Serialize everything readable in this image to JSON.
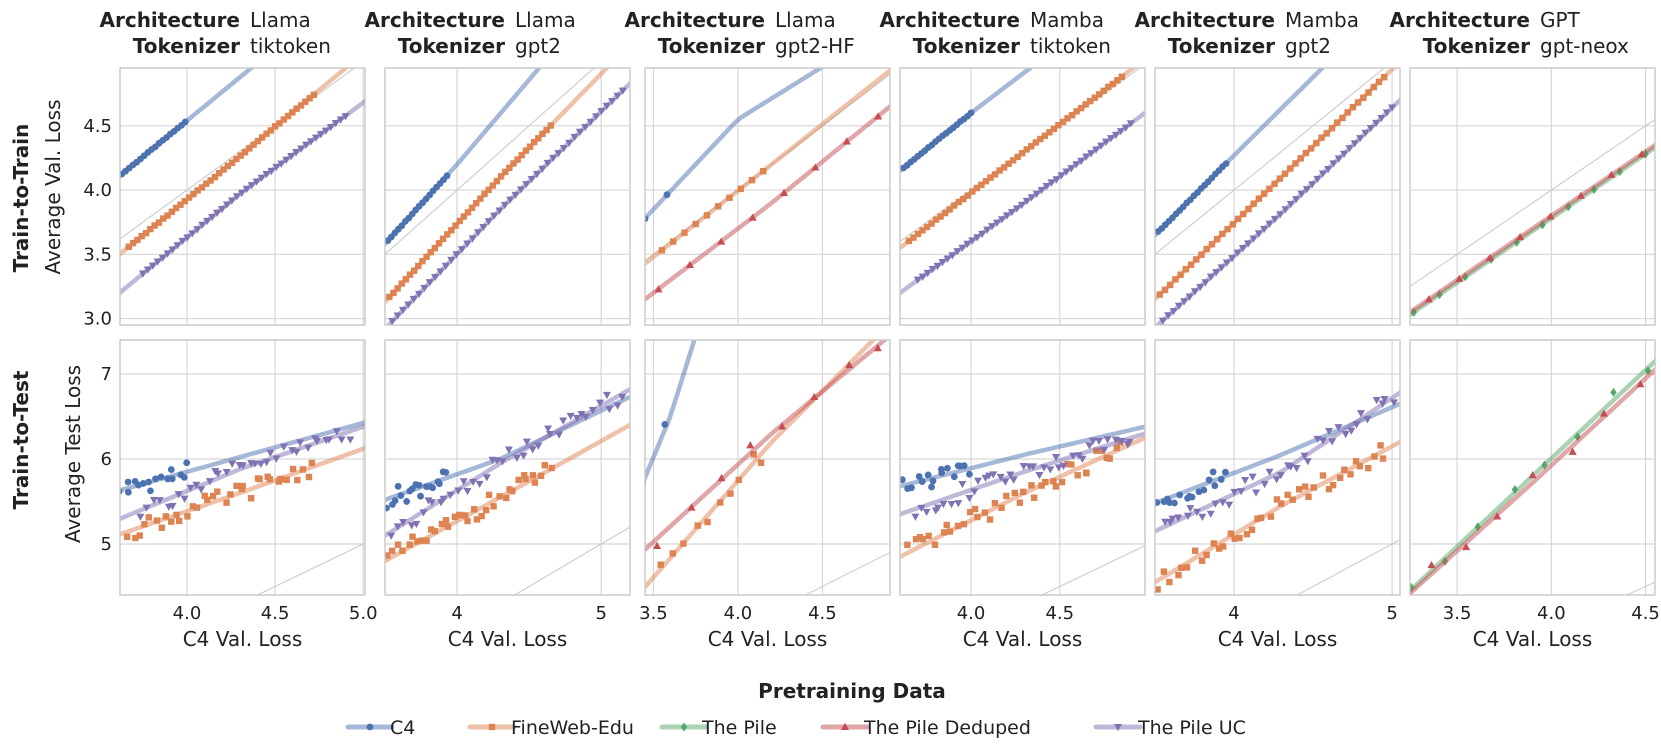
{
  "figure": {
    "legend_title": "Pretraining Data",
    "x_label": "C4 Val. Loss",
    "row_labels": [
      "Train-to-Train",
      "Train-to-Test"
    ],
    "y_labels": [
      "Average Val. Loss",
      "Average Test Loss"
    ],
    "arch_key": "Architecture",
    "tok_key": "Tokenizer"
  },
  "series_styles": {
    "C4": {
      "color": "#4c72b0",
      "marker": "circle"
    },
    "FineWeb-Edu": {
      "color": "#dd8452",
      "marker": "square"
    },
    "The Pile": {
      "color": "#55a868",
      "marker": "diamond"
    },
    "The Pile Deduped": {
      "color": "#c44e52",
      "marker": "triangle-up"
    },
    "The Pile UC": {
      "color": "#8172b3",
      "marker": "triangle-down"
    }
  },
  "legend": [
    "C4",
    "FineWeb-Edu",
    "The Pile",
    "The Pile Deduped",
    "The Pile UC"
  ],
  "chart_data": [
    {
      "type": "scatter",
      "arch": "Llama",
      "tok": "tiktoken",
      "xlim": [
        3.62,
        5.01
      ],
      "xticks": [
        4.0,
        4.5,
        5.0
      ],
      "xticklabels": [
        "4.0",
        "4.5",
        "5.0"
      ],
      "row_ylim": [
        [
          2.95,
          4.95
        ],
        [
          4.4,
          7.4
        ]
      ],
      "row_yticks": [
        [
          3.0,
          3.5,
          4.0,
          4.5
        ],
        [
          5,
          6,
          7
        ]
      ],
      "row_yticklabels": [
        [
          "3.0",
          "3.5",
          "4.0",
          "4.5"
        ],
        [
          "5",
          "6",
          "7"
        ]
      ],
      "train_to_train": [
        {
          "name": "C4",
          "x0": 3.63,
          "x1": 3.99,
          "n": 18,
          "fit": [
            [
              3.6,
              4.09
            ],
            [
              4.0,
              4.54
            ],
            [
              4.4,
              4.99
            ]
          ]
        },
        {
          "name": "FineWeb-Edu",
          "x0": 3.67,
          "x1": 4.72,
          "n": 44,
          "fit": [
            [
              3.6,
              3.48
            ],
            [
              4.2,
              4.15
            ],
            [
              4.9,
              4.95
            ]
          ]
        },
        {
          "name": "The Pile UC",
          "x0": 3.75,
          "x1": 4.9,
          "n": 42,
          "fit": [
            [
              3.6,
              3.18
            ],
            [
              4.3,
              3.97
            ],
            [
              5.0,
              4.68
            ]
          ]
        }
      ],
      "train_to_test": [
        {
          "name": "C4",
          "x0": 3.63,
          "x1": 4.0,
          "n": 16,
          "fit": [
            [
              3.6,
              5.62
            ],
            [
              4.0,
              5.85
            ]
          ]
        },
        {
          "name": "FineWeb-Edu",
          "x0": 3.67,
          "x1": 4.72,
          "n": 36,
          "fit": [
            [
              3.6,
              5.1
            ],
            [
              4.3,
              5.6
            ],
            [
              5.0,
              6.12
            ]
          ]
        },
        {
          "name": "The Pile UC",
          "x0": 3.75,
          "x1": 4.92,
          "n": 36,
          "fit": [
            [
              3.6,
              5.28
            ],
            [
              4.3,
              5.88
            ],
            [
              5.0,
              6.38
            ]
          ]
        }
      ]
    },
    {
      "type": "scatter",
      "arch": "Llama",
      "tok": "gpt2",
      "xlim": [
        3.5,
        5.2
      ],
      "xticks": [
        4.0,
        5.0
      ],
      "xticklabels": [
        "4",
        "5"
      ],
      "row_ylim": [
        [
          2.95,
          4.95
        ],
        [
          4.4,
          7.4
        ]
      ],
      "row_yticks": [
        [
          3.0,
          3.5,
          4.0,
          4.5
        ],
        [
          5,
          6,
          7
        ]
      ],
      "row_yticklabels": [
        [
          "3.0",
          "3.5",
          "4.0",
          "4.5"
        ],
        [
          "5",
          "6",
          "7"
        ]
      ],
      "train_to_train": [
        {
          "name": "C4",
          "x0": 3.52,
          "x1": 3.93,
          "n": 18,
          "fit": [
            [
              3.5,
              3.58
            ],
            [
              4.0,
              4.2
            ],
            [
              4.6,
              4.99
            ]
          ]
        },
        {
          "name": "FineWeb-Edu",
          "x0": 3.53,
          "x1": 4.65,
          "n": 40,
          "fit": [
            [
              3.5,
              3.13
            ],
            [
              4.3,
              4.1
            ],
            [
              5.1,
              5.02
            ]
          ]
        },
        {
          "name": "The Pile UC",
          "x0": 3.55,
          "x1": 5.15,
          "n": 44,
          "fit": [
            [
              3.5,
              2.92
            ],
            [
              4.3,
              3.85
            ],
            [
              5.2,
              4.83
            ]
          ]
        }
      ],
      "train_to_test": [
        {
          "name": "C4",
          "x0": 3.52,
          "x1": 3.93,
          "n": 18,
          "fit": [
            [
              3.5,
              5.52
            ],
            [
              4.3,
              6.0
            ],
            [
              5.1,
              6.65
            ]
          ]
        },
        {
          "name": "FineWeb-Edu",
          "x0": 3.53,
          "x1": 4.65,
          "n": 36,
          "fit": [
            [
              3.5,
              4.8
            ],
            [
              4.3,
              5.55
            ],
            [
              5.2,
              6.4
            ]
          ]
        },
        {
          "name": "The Pile UC",
          "x0": 3.55,
          "x1": 5.15,
          "n": 40,
          "fit": [
            [
              3.5,
              5.1
            ],
            [
              4.3,
              5.95
            ],
            [
              5.2,
              6.82
            ]
          ]
        }
      ]
    },
    {
      "type": "scatter",
      "arch": "Llama",
      "tok": "gpt2-HF",
      "xlim": [
        3.45,
        4.9
      ],
      "xticks": [
        3.5,
        4.0,
        4.5
      ],
      "xticklabels": [
        "3.5",
        "4.0",
        "4.5"
      ],
      "row_ylim": [
        [
          2.95,
          4.95
        ],
        [
          4.4,
          7.4
        ]
      ],
      "row_yticks": [
        [
          3.0,
          3.5,
          4.0,
          4.5
        ],
        [
          5,
          6,
          7
        ]
      ],
      "row_yticklabels": [
        [
          "3.0",
          "3.5",
          "4.0",
          "4.5"
        ],
        [
          "5",
          "6",
          "7"
        ]
      ],
      "train_to_train": [
        {
          "name": "C4",
          "x0": 3.45,
          "x1": 3.58,
          "n": 2,
          "fit": [
            [
              3.45,
              3.78
            ],
            [
              4.0,
              4.55
            ],
            [
              4.55,
              5.0
            ]
          ]
        },
        {
          "name": "FineWeb-Edu",
          "x0": 3.55,
          "x1": 4.15,
          "n": 10,
          "fit": [
            [
              3.5,
              3.48
            ],
            [
              4.2,
              4.2
            ],
            [
              4.9,
              4.93
            ]
          ]
        },
        {
          "name": "The Pile Deduped",
          "x0": 3.53,
          "x1": 4.83,
          "n": 8,
          "fit": [
            [
              3.5,
              3.2
            ],
            [
              4.2,
              3.9
            ],
            [
              4.9,
              4.65
            ]
          ]
        }
      ],
      "train_to_test": [
        {
          "name": "C4",
          "x0": 3.45,
          "x1": 3.58,
          "n": 2,
          "fit": [
            [
              3.45,
              5.78
            ],
            [
              3.6,
              6.5
            ],
            [
              3.75,
              7.45
            ]
          ]
        },
        {
          "name": "FineWeb-Edu",
          "x0": 3.55,
          "x1": 4.15,
          "n": 10,
          "fit": [
            [
              3.55,
              4.72
            ],
            [
              4.2,
              6.2
            ],
            [
              4.85,
              7.5
            ]
          ]
        },
        {
          "name": "The Pile Deduped",
          "x0": 3.53,
          "x1": 4.83,
          "n": 8,
          "fit": [
            [
              3.53,
              5.08
            ],
            [
              4.2,
              6.3
            ],
            [
              4.88,
              7.42
            ]
          ]
        }
      ]
    },
    {
      "type": "scatter",
      "arch": "Mamba",
      "tok": "tiktoken",
      "xlim": [
        3.6,
        4.98
      ],
      "xticks": [
        4.0,
        4.5
      ],
      "xticklabels": [
        "4.0",
        "4.5"
      ],
      "row_ylim": [
        [
          2.95,
          4.95
        ],
        [
          4.4,
          7.4
        ]
      ],
      "row_yticks": [
        [
          3.0,
          3.5,
          4.0,
          4.5
        ],
        [
          5,
          6,
          7
        ]
      ],
      "row_yticklabels": [
        [
          "3.0",
          "3.5",
          "4.0",
          "4.5"
        ],
        [
          "5",
          "6",
          "7"
        ]
      ],
      "train_to_train": [
        {
          "name": "C4",
          "x0": 3.62,
          "x1": 4.0,
          "n": 20,
          "fit": [
            [
              3.6,
              4.15
            ],
            [
              4.0,
              4.6
            ],
            [
              4.4,
              5.02
            ]
          ]
        },
        {
          "name": "FineWeb-Edu",
          "x0": 3.65,
          "x1": 4.85,
          "n": 48,
          "fit": [
            [
              3.6,
              3.55
            ],
            [
              4.3,
              4.3
            ],
            [
              4.98,
              5.02
            ]
          ]
        },
        {
          "name": "The Pile UC",
          "x0": 3.7,
          "x1": 4.9,
          "n": 44,
          "fit": [
            [
              3.6,
              3.2
            ],
            [
              4.3,
              3.9
            ],
            [
              4.98,
              4.6
            ]
          ]
        }
      ],
      "train_to_test": [
        {
          "name": "C4",
          "x0": 3.62,
          "x1": 4.0,
          "n": 16,
          "fit": [
            [
              3.6,
              5.68
            ],
            [
              4.3,
              6.05
            ],
            [
              4.98,
              6.38
            ]
          ]
        },
        {
          "name": "FineWeb-Edu",
          "x0": 3.65,
          "x1": 4.85,
          "n": 40,
          "fit": [
            [
              3.6,
              4.85
            ],
            [
              4.3,
              5.6
            ],
            [
              4.98,
              6.25
            ]
          ]
        },
        {
          "name": "The Pile UC",
          "x0": 3.7,
          "x1": 4.9,
          "n": 40,
          "fit": [
            [
              3.6,
              5.35
            ],
            [
              4.3,
              5.85
            ],
            [
              4.98,
              6.3
            ]
          ]
        }
      ]
    },
    {
      "type": "scatter",
      "arch": "Mamba",
      "tok": "gpt2",
      "xlim": [
        3.5,
        5.05
      ],
      "xticks": [
        4.0,
        5.0
      ],
      "xticklabels": [
        "4",
        "5"
      ],
      "row_ylim": [
        [
          2.95,
          4.95
        ],
        [
          4.4,
          7.4
        ]
      ],
      "row_yticks": [
        [
          3.0,
          3.5,
          4.0,
          4.5
        ],
        [
          5,
          6,
          7
        ]
      ],
      "row_yticklabels": [
        [
          "3.0",
          "3.5",
          "4.0",
          "4.5"
        ],
        [
          "5",
          "6",
          "7"
        ]
      ],
      "train_to_train": [
        {
          "name": "C4",
          "x0": 3.52,
          "x1": 3.95,
          "n": 20,
          "fit": [
            [
              3.5,
              3.65
            ],
            [
              4.0,
              4.27
            ],
            [
              4.6,
              5.0
            ]
          ]
        },
        {
          "name": "FineWeb-Edu",
          "x0": 3.53,
          "x1": 4.95,
          "n": 44,
          "fit": [
            [
              3.5,
              3.15
            ],
            [
              4.3,
              4.1
            ],
            [
              5.05,
              5.0
            ]
          ]
        },
        {
          "name": "The Pile UC",
          "x0": 3.55,
          "x1": 5.0,
          "n": 44,
          "fit": [
            [
              3.5,
              2.93
            ],
            [
              4.3,
              3.82
            ],
            [
              5.05,
              4.7
            ]
          ]
        }
      ],
      "train_to_test": [
        {
          "name": "C4",
          "x0": 3.52,
          "x1": 3.95,
          "n": 16,
          "fit": [
            [
              3.5,
              5.48
            ],
            [
              4.3,
              6.05
            ],
            [
              5.05,
              6.65
            ]
          ]
        },
        {
          "name": "FineWeb-Edu",
          "x0": 3.53,
          "x1": 4.95,
          "n": 40,
          "fit": [
            [
              3.5,
              4.55
            ],
            [
              4.3,
              5.45
            ],
            [
              5.05,
              6.2
            ]
          ]
        },
        {
          "name": "The Pile UC",
          "x0": 3.55,
          "x1": 5.0,
          "n": 40,
          "fit": [
            [
              3.5,
              5.15
            ],
            [
              4.3,
              5.85
            ],
            [
              5.05,
              6.78
            ]
          ]
        }
      ]
    },
    {
      "type": "scatter",
      "arch": "GPT",
      "tok": "gpt-neox",
      "xlim": [
        3.25,
        4.55
      ],
      "xticks": [
        3.5,
        4.0,
        4.5
      ],
      "xticklabels": [
        "3.5",
        "4.0",
        "4.5"
      ],
      "row_ylim": [
        [
          2.95,
          4.95
        ],
        [
          4.4,
          7.4
        ]
      ],
      "row_yticks": [
        [
          3.0,
          3.5,
          4.0,
          4.5
        ],
        [
          5,
          6,
          7
        ]
      ],
      "row_yticklabels": [
        [
          "3.0",
          "3.5",
          "4.0",
          "4.5"
        ],
        [
          "5",
          "6",
          "7"
        ]
      ],
      "train_to_train": [
        {
          "name": "The Pile",
          "x0": 3.27,
          "x1": 4.5,
          "n": 10,
          "fit": [
            [
              3.25,
              3.03
            ],
            [
              3.9,
              3.68
            ],
            [
              4.55,
              4.33
            ]
          ]
        },
        {
          "name": "The Pile Deduped",
          "x0": 3.35,
          "x1": 4.48,
          "n": 8,
          "fit": [
            [
              3.25,
              3.05
            ],
            [
              3.9,
              3.7
            ],
            [
              4.55,
              4.35
            ]
          ]
        }
      ],
      "train_to_test": [
        {
          "name": "The Pile",
          "x0": 3.27,
          "x1": 4.5,
          "n": 8,
          "fit": [
            [
              3.25,
              4.45
            ],
            [
              3.9,
              5.8
            ],
            [
              4.55,
              7.15
            ]
          ]
        },
        {
          "name": "The Pile Deduped",
          "x0": 3.35,
          "x1": 4.48,
          "n": 7,
          "fit": [
            [
              3.25,
              4.42
            ],
            [
              3.9,
              5.72
            ],
            [
              4.55,
              7.05
            ]
          ]
        }
      ]
    }
  ]
}
